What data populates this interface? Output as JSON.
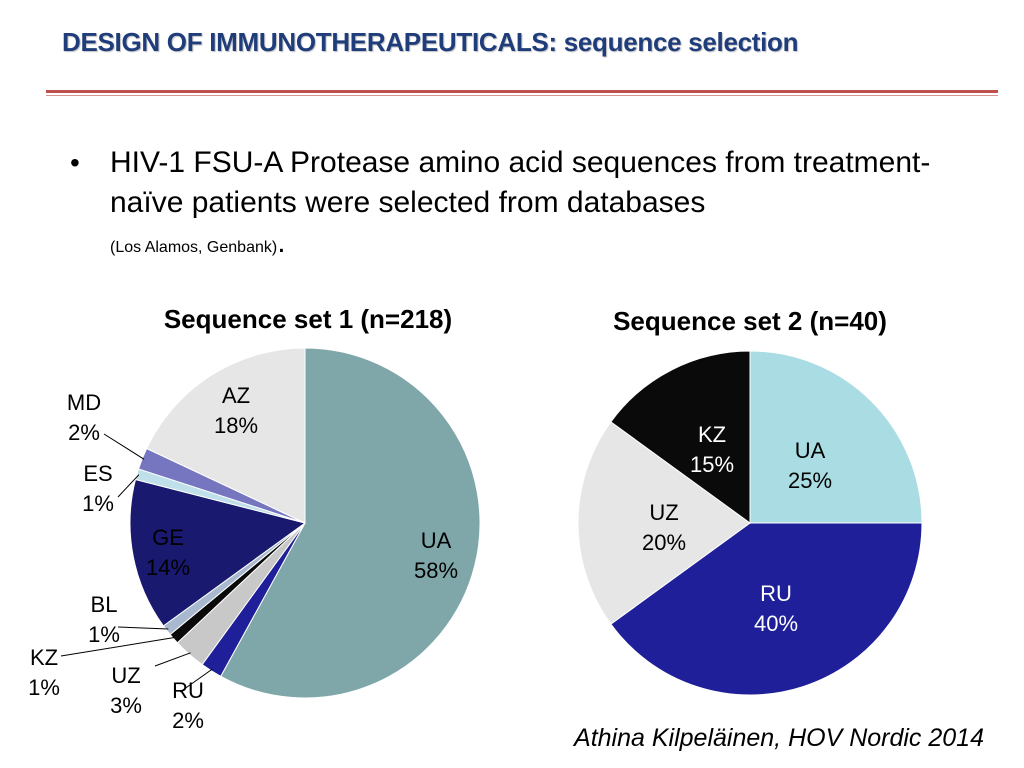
{
  "slide": {
    "title": "DESIGN OF IMMUNOTHERAPEUTICALS: sequence selection",
    "bullet": {
      "text": "HIV-1 FSU-A Protease amino acid sequences from treatment-naïve patients were selected from databases",
      "note": "(Los Alamos, Genbank)",
      "period": "."
    },
    "citation": "Athina Kilpeläinen, HOV Nordic 2014"
  },
  "chart_data": [
    {
      "type": "pie",
      "title": "Sequence set 1 (n=218)",
      "slices": [
        {
          "label": "UA",
          "value": 58,
          "value_label": "58%",
          "color": "#7fa7aa"
        },
        {
          "label": "RU",
          "value": 2,
          "value_label": "2%",
          "color": "#1f1f99"
        },
        {
          "label": "UZ",
          "value": 3,
          "value_label": "3%",
          "color": "#c8c8c8"
        },
        {
          "label": "KZ",
          "value": 1,
          "value_label": "1%",
          "color": "#0a0a0a"
        },
        {
          "label": "BL",
          "value": 1,
          "value_label": "1%",
          "color": "#a8b8ce"
        },
        {
          "label": "GE",
          "value": 14,
          "value_label": "14%",
          "color": "#191970"
        },
        {
          "label": "ES",
          "value": 1,
          "value_label": "1%",
          "color": "#bfe0ea"
        },
        {
          "label": "MD",
          "value": 2,
          "value_label": "2%",
          "color": "#7676c0"
        },
        {
          "label": "AZ",
          "value": 18,
          "value_label": "18%",
          "color": "#e6e6e6"
        }
      ]
    },
    {
      "type": "pie",
      "title": "Sequence set 2 (n=40)",
      "slices": [
        {
          "label": "UA",
          "value": 25,
          "value_label": "25%",
          "color": "#a9dde3"
        },
        {
          "label": "RU",
          "value": 40,
          "value_label": "40%",
          "color": "#1f1f99"
        },
        {
          "label": "UZ",
          "value": 20,
          "value_label": "20%",
          "color": "#e6e6e6"
        },
        {
          "label": "KZ",
          "value": 15,
          "value_label": "15%",
          "color": "#0a0a0a"
        }
      ]
    }
  ]
}
